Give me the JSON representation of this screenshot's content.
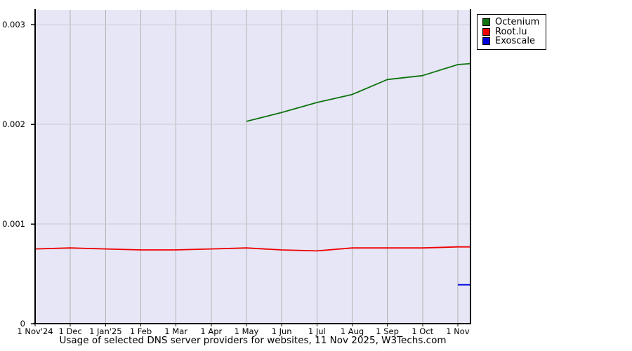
{
  "caption": "Usage of selected DNS server providers for websites, 11 Nov 2025, W3Techs.com",
  "colors": {
    "page_background": "#ffffff",
    "plot_background": "#e6e6f6",
    "vertical_grid": "#b3b3b3",
    "horizontal_grid": "#c9c9d2",
    "axis": "#000000",
    "legend_border": "#000000",
    "legend_background": "#ffffff"
  },
  "chart_data": {
    "type": "line",
    "title": "Usage of selected DNS server providers for websites, 11 Nov 2025, W3Techs.com",
    "grid": true,
    "legend_position": "top-right-outside",
    "xlim_months": [
      0,
      12.36
    ],
    "ylim": [
      0,
      0.00315
    ],
    "x_tick_months": [
      0,
      1,
      2,
      3,
      4,
      5,
      6,
      7,
      8,
      9,
      10,
      11,
      12
    ],
    "x_tick_labels": [
      "1 Nov'24",
      "1 Dec",
      "1 Jan'25",
      "1 Feb",
      "1 Mar",
      "1 Apr",
      "1 May",
      "1 Jun",
      "1 Jul",
      "1 Aug",
      "1 Sep",
      "1 Oct",
      "1 Nov"
    ],
    "y_ticks": [
      {
        "label": "0",
        "value": 0
      },
      {
        "label": "0.001",
        "value": 0.001
      },
      {
        "label": "0.002",
        "value": 0.002
      },
      {
        "label": "0.003",
        "value": 0.003
      }
    ],
    "series": [
      {
        "name": "Octenium",
        "color": "#0f730f",
        "points": [
          [
            6,
            0.00203
          ],
          [
            7,
            0.00212
          ],
          [
            8,
            0.00222
          ],
          [
            9,
            0.0023
          ],
          [
            10,
            0.00245
          ],
          [
            11,
            0.00249
          ],
          [
            12,
            0.0026
          ],
          [
            12.36,
            0.00261
          ]
        ]
      },
      {
        "name": "Root.lu",
        "color": "#ee0000",
        "points": [
          [
            0,
            0.00075
          ],
          [
            1,
            0.00076
          ],
          [
            2,
            0.00075
          ],
          [
            3,
            0.00074
          ],
          [
            4,
            0.00074
          ],
          [
            5,
            0.00075
          ],
          [
            6,
            0.00076
          ],
          [
            7,
            0.00074
          ],
          [
            8,
            0.00073
          ],
          [
            9,
            0.00076
          ],
          [
            10,
            0.00076
          ],
          [
            11,
            0.00076
          ],
          [
            12,
            0.00077
          ],
          [
            12.36,
            0.00077
          ]
        ]
      },
      {
        "name": "Exoscale",
        "color": "#0000dd",
        "points": [
          [
            12,
            0.00039
          ],
          [
            12.36,
            0.00039
          ]
        ]
      }
    ]
  }
}
